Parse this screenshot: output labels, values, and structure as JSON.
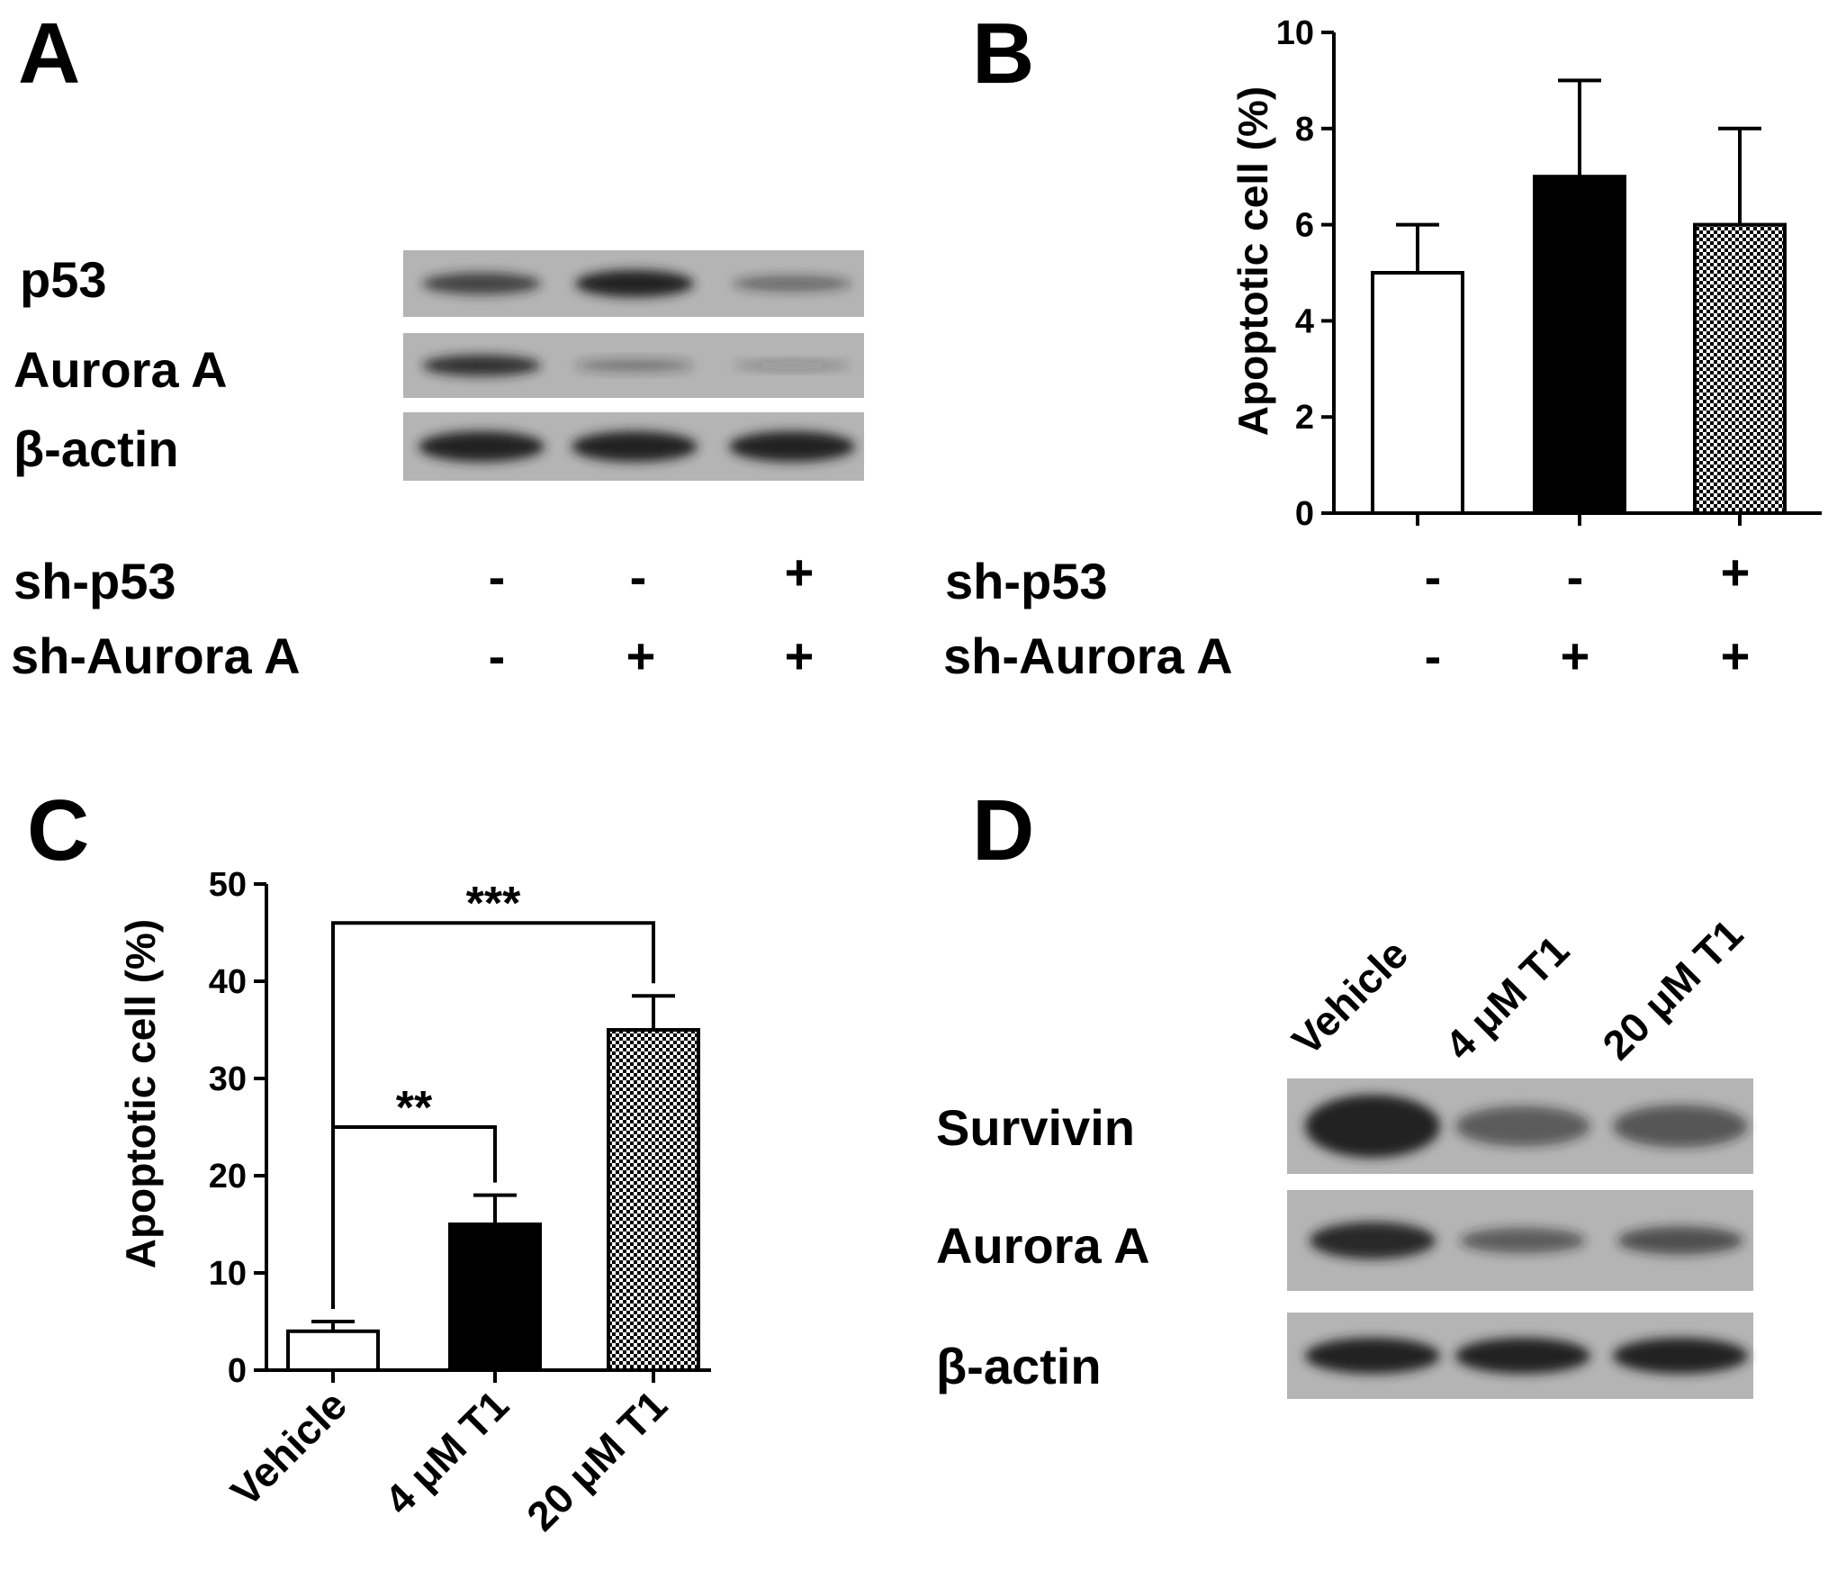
{
  "panel_letters": [
    "A",
    "B",
    "C",
    "D"
  ],
  "colors": {
    "ink": "#000000",
    "white_bar": "#ffffff",
    "black_bar": "#000000",
    "blot_bg": "#b4b4b4",
    "blot_band": "#202020"
  },
  "panel_a": {
    "bands": [
      "p53",
      "Aurora A",
      "β-actin"
    ],
    "conditions": [
      {
        "label": "sh-p53",
        "signs": [
          "-",
          "-",
          "+"
        ]
      },
      {
        "label": "sh-Aurora A",
        "signs": [
          "-",
          "+",
          "+"
        ]
      }
    ],
    "intensities": [
      [
        0.7,
        1.0,
        0.35
      ],
      [
        0.85,
        0.25,
        0.05
      ],
      [
        1.0,
        1.0,
        1.0
      ]
    ]
  },
  "panel_d": {
    "lanes": [
      "Vehicle",
      "4 μM T1",
      "20 μM T1"
    ],
    "bands": [
      "Survivin",
      "Aurora A",
      "β-actin"
    ],
    "intensities": [
      [
        1.0,
        0.45,
        0.5
      ],
      [
        0.9,
        0.45,
        0.55
      ],
      [
        1.0,
        1.0,
        1.0
      ]
    ]
  },
  "chart_data": [
    {
      "panel": "B",
      "type": "bar",
      "categories": [
        "",
        "",
        ""
      ],
      "values": [
        5,
        7,
        6
      ],
      "errors": [
        1,
        2,
        2
      ],
      "fills": [
        "white",
        "black",
        "checkered"
      ],
      "ylabel": "Apoptotic cell (%)",
      "ylim": [
        0,
        10
      ],
      "yticks": [
        0,
        2,
        4,
        6,
        8,
        10
      ],
      "grid": false,
      "conditions": [
        {
          "label": "sh-p53",
          "signs": [
            "-",
            "-",
            "+"
          ]
        },
        {
          "label": "sh-Aurora A",
          "signs": [
            "-",
            "+",
            "+"
          ]
        }
      ]
    },
    {
      "panel": "C",
      "type": "bar",
      "categories": [
        "Vehicle",
        "4 μM T1",
        "20 μM T1"
      ],
      "values": [
        4,
        15,
        35
      ],
      "errors": [
        1,
        3,
        3.5
      ],
      "fills": [
        "white",
        "black",
        "checkered"
      ],
      "ylabel": "Apoptotic cell (%)",
      "ylim": [
        0,
        50
      ],
      "yticks": [
        0,
        10,
        20,
        30,
        40,
        50
      ],
      "grid": false,
      "significance": [
        {
          "from": 0,
          "to": 1,
          "label": "**",
          "level": 25
        },
        {
          "from": 0,
          "to": 2,
          "label": "***",
          "level": 46
        }
      ]
    }
  ]
}
